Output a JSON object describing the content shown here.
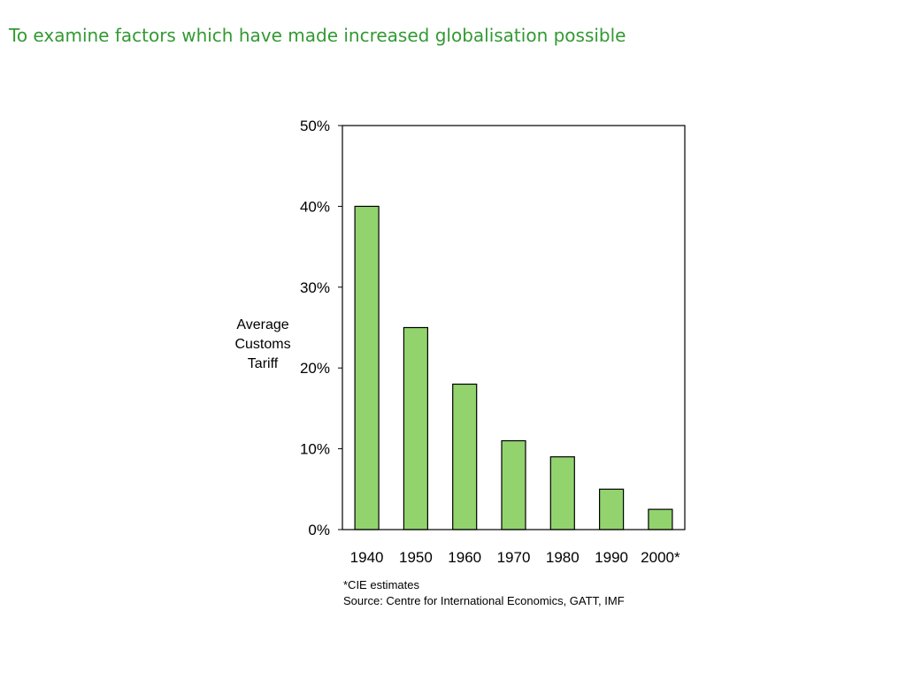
{
  "slide": {
    "title": "To examine factors which have made increased globalisation possible"
  },
  "chart_data": {
    "type": "bar",
    "categories": [
      "1940",
      "1950",
      "1960",
      "1970",
      "1980",
      "1990",
      "2000*"
    ],
    "values": [
      40,
      25,
      18,
      11,
      9,
      5,
      2.5
    ],
    "ylabel_lines": [
      "Average",
      "Customs",
      "Tariff"
    ],
    "ylim": [
      0,
      50
    ],
    "yticks": [
      "0%",
      "10%",
      "20%",
      "30%",
      "40%",
      "50%"
    ],
    "grid": false,
    "legend": "none",
    "bar_color": "#92d36e",
    "notes": [
      "*CIE estimates",
      "Source: Centre for International Economics, GATT, IMF"
    ]
  }
}
